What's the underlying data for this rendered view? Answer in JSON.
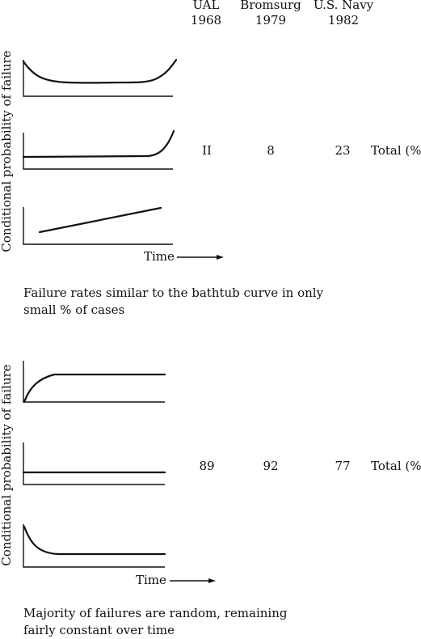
{
  "columns": [
    {
      "name": "UAL",
      "year": "1968"
    },
    {
      "name": "Bromsurg",
      "year": "1979"
    },
    {
      "name": "U.S. Navy",
      "year": "1982"
    }
  ],
  "top_group": {
    "ylabel": "Conditional probability of failure",
    "xlabel": "Time",
    "values": [
      "II",
      "8",
      "23"
    ],
    "total_label": "Total (%)",
    "caption_line1": "Failure rates similar to the bathtub curve in only",
    "caption_line2": "small % of cases"
  },
  "bottom_group": {
    "ylabel": "Conditional probability of failure",
    "xlabel": "Time",
    "values": [
      "89",
      "92",
      "77"
    ],
    "total_label": "Total (%)",
    "caption_line1": "Majority of failures are random, remaining",
    "caption_line2": "fairly constant over time"
  }
}
